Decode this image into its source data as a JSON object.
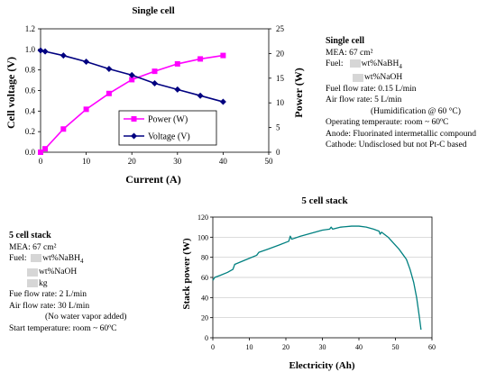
{
  "specs_single": {
    "title": "Single cell",
    "mea": "MEA: 67 cm²",
    "fuel_label": "Fuel:",
    "fuel_a": "wt%NaBH",
    "fuel_a_sub": "4",
    "fuel_b": "wt%NaOH",
    "fuel_flow": "Fuel flow rate:  0.15 L/min",
    "air_flow": "Air flow rate:  5 L/min",
    "humid": "(Humidification @ 60 °C)",
    "op_temp": "Operating temperaute:   room ~ 60ºC",
    "anode": "Anode: Fluorinated intermetallic compound",
    "cathode": "Cathode: Undisclosed but not Pt-C based"
  },
  "specs_stack": {
    "title": "5 cell stack",
    "mea": "MEA: 67 cm²",
    "fuel_label": "Fuel:",
    "fuel_a": "wt%NaBH",
    "fuel_a_sub": "4",
    "fuel_b": "wt%NaOH",
    "fuel_c": "kg",
    "fuel_flow": "Fue flow rate:  2 L/min",
    "air_flow": "Air flow rate:  30 L/min",
    "no_vapor": "(No water vapor added)",
    "start_temp": "Start temperature: room ~ 60ºC"
  },
  "chart_data": [
    {
      "type": "line",
      "title": "Single cell",
      "xlabel": "Current (A)",
      "ylabel": "Cell voltage (V)",
      "y2label": "Power (W)",
      "xlim": [
        0,
        50
      ],
      "ylim": [
        0,
        1.2
      ],
      "y2lim": [
        0,
        25
      ],
      "xticks": [
        "0",
        "10",
        "20",
        "30",
        "40",
        "50"
      ],
      "yticks": [
        "0.0",
        "0.2",
        "0.4",
        "0.6",
        "0.8",
        "1.0",
        "1.2"
      ],
      "y2ticks": [
        "0",
        "5",
        "10",
        "15",
        "20",
        "25"
      ],
      "legend_position": "center-right",
      "series": [
        {
          "name": "Power (W)",
          "axis": "right",
          "color": "#ff00ff",
          "marker": "square",
          "x": [
            0,
            1,
            5,
            10,
            15,
            20,
            25,
            30,
            35,
            40
          ],
          "y": [
            0.0,
            0.7,
            4.7,
            8.7,
            11.9,
            14.7,
            16.4,
            17.9,
            18.9,
            19.6
          ]
        },
        {
          "name": "Voltage (V)",
          "axis": "left",
          "color": "#000080",
          "marker": "diamond",
          "x": [
            0,
            1,
            5,
            10,
            15,
            20,
            25,
            30,
            35,
            40
          ],
          "y": [
            0.99,
            0.98,
            0.94,
            0.88,
            0.81,
            0.75,
            0.67,
            0.61,
            0.55,
            0.49
          ]
        }
      ]
    },
    {
      "type": "line",
      "title": "5 cell stack",
      "xlabel": "Electricity (Ah)",
      "ylabel": "Stack power (W)",
      "xlim": [
        0,
        60
      ],
      "ylim": [
        0,
        120
      ],
      "xticks": [
        "0",
        "10",
        "20",
        "30",
        "40",
        "50",
        "60"
      ],
      "yticks": [
        "0",
        "20",
        "40",
        "60",
        "80",
        "100",
        "120"
      ],
      "grid": "horizontal",
      "series": [
        {
          "name": "",
          "color": "#008080",
          "x": [
            0,
            0.5,
            2,
            4,
            5.5,
            6,
            8,
            10,
            12,
            12.6,
            15,
            18,
            20.8,
            21.2,
            21.6,
            24,
            27,
            30,
            32,
            32.4,
            32.8,
            35,
            38,
            40,
            42,
            44,
            45.5,
            45.8,
            46.2,
            48,
            49.5,
            51,
            52,
            53,
            54,
            55,
            55.8,
            56.5,
            57
          ],
          "y": [
            57,
            60,
            62,
            65,
            68,
            73,
            76,
            79,
            82,
            85,
            88,
            92,
            96,
            101,
            98,
            101,
            104,
            107,
            108,
            110,
            108,
            110,
            111,
            111,
            110,
            108,
            106,
            103,
            105,
            100,
            94,
            88,
            83,
            78,
            68,
            55,
            40,
            22,
            8
          ]
        }
      ]
    }
  ]
}
